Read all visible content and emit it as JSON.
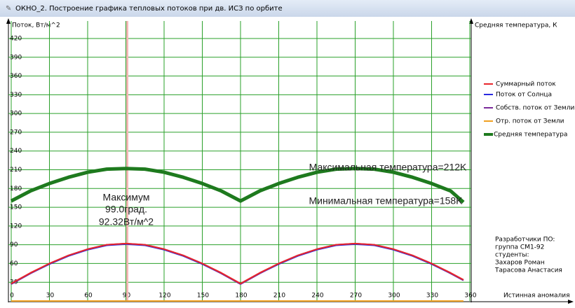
{
  "window": {
    "title": "ОКНО_2. Построение графика тепловых потоков при дв. ИСЗ по орбите"
  },
  "chart_data": {
    "type": "line",
    "y_label": "Поток, Вт/м^2",
    "y2_label": "Средняя температура, К",
    "x_label": "Истинная аномалия",
    "x": [
      0,
      15,
      30,
      45,
      60,
      75,
      90,
      105,
      120,
      135,
      150,
      165,
      180,
      195,
      210,
      225,
      240,
      255,
      270,
      285,
      300,
      315,
      330,
      345,
      355
    ],
    "series": [
      {
        "name": "Суммарный поток",
        "color": "#e8252a",
        "width": 2,
        "values": [
          28,
          45,
          60,
          73,
          83,
          90,
          92,
          90,
          83,
          73,
          60,
          45,
          28,
          45,
          60,
          73,
          83,
          90,
          92,
          90,
          83,
          73,
          60,
          45,
          34
        ]
      },
      {
        "name": "Поток от Солнца",
        "color": "#2a2ae0",
        "width": 2,
        "values": [
          27,
          44,
          59,
          72,
          82,
          89,
          91,
          89,
          82,
          72,
          59,
          44,
          27,
          44,
          59,
          72,
          82,
          89,
          91,
          89,
          82,
          72,
          59,
          44,
          33
        ]
      },
      {
        "name": "Собств. поток от Земли",
        "color": "#7a2a9a",
        "width": 2,
        "values": [
          27,
          44,
          60,
          73,
          83,
          90,
          92,
          90,
          83,
          73,
          60,
          44,
          27,
          44,
          60,
          73,
          83,
          90,
          92,
          90,
          83,
          73,
          60,
          44,
          33
        ]
      },
      {
        "name": "Отр. поток от Земли",
        "color": "#f0a020",
        "width": 2,
        "values": [
          0,
          0,
          0,
          0,
          0,
          0,
          0,
          0,
          0,
          0,
          0,
          0,
          0,
          0,
          0,
          0,
          0,
          0,
          0,
          0,
          0,
          0,
          0,
          0,
          0
        ]
      },
      {
        "name": "Средняя температура",
        "color": "#1e7a1e",
        "width": 5,
        "values": [
          160,
          176,
          188,
          198,
          206,
          211,
          212,
          211,
          206,
          198,
          188,
          176,
          160,
          176,
          188,
          198,
          206,
          211,
          212,
          211,
          206,
          198,
          188,
          176,
          158
        ]
      }
    ],
    "xlim": [
      0,
      360
    ],
    "ylim": [
      0,
      420
    ],
    "xticks": [
      0,
      30,
      60,
      90,
      120,
      150,
      180,
      210,
      240,
      270,
      300,
      330,
      360
    ],
    "yticks": [
      30,
      60,
      90,
      120,
      150,
      180,
      210,
      240,
      270,
      300,
      330,
      360,
      390,
      420
    ],
    "grid": true,
    "grid_color": "#2aa02a",
    "cursor_x": 90,
    "annotations": [
      "Максимум",
      "99.0град.",
      "92.32Вт/м^2",
      "Максимальная температура=212K",
      "Минимальная температура=158K"
    ]
  },
  "credits": [
    "Разработчики ПО:",
    "группа СМ1-92",
    "студенты:",
    "Захаров Роман",
    "Тарасова Анастасия"
  ]
}
